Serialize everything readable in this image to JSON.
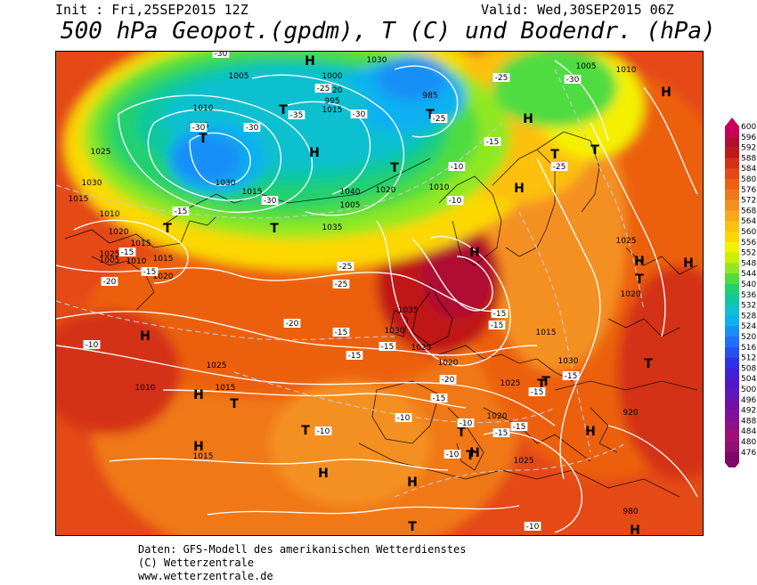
{
  "header": {
    "init": "Init : Fri,25SEP2015 12Z",
    "valid": "Valid: Wed,30SEP2015 06Z",
    "title": "500 hPa Geopot.(gpdm), T (C) und Bodendr. (hPa)"
  },
  "footer": {
    "line1": "Daten: GFS-Modell des amerikanischen Wetterdienstes",
    "line2": "(C) Wetterzentrale",
    "line3": "www.wetterzentrale.de"
  },
  "legend": {
    "values": [
      "600",
      "596",
      "592",
      "588",
      "584",
      "580",
      "576",
      "572",
      "568",
      "564",
      "560",
      "556",
      "552",
      "548",
      "544",
      "540",
      "536",
      "532",
      "528",
      "524",
      "520",
      "516",
      "512",
      "508",
      "504",
      "500",
      "496",
      "492",
      "488",
      "484",
      "480",
      "476"
    ],
    "colors": [
      "#c8005a",
      "#b01030",
      "#c01818",
      "#d43018",
      "#e44818",
      "#ec6010",
      "#f07818",
      "#f49020",
      "#f8a818",
      "#fcc010",
      "#fcd800",
      "#f4f000",
      "#c8f000",
      "#90e820",
      "#50dc40",
      "#20d070",
      "#10c8a0",
      "#10c0d0",
      "#10b0f0",
      "#1890f8",
      "#2070f8",
      "#2850f0",
      "#3030e8",
      "#4020d8",
      "#5018c8",
      "#6018b8",
      "#7010a8",
      "#801098",
      "#901088",
      "#a01078",
      "#901070",
      "#800868"
    ]
  },
  "map_labels": {
    "highs": [
      "H",
      "H",
      "H",
      "H",
      "H",
      "H",
      "H",
      "H",
      "H",
      "H",
      "H",
      "H",
      "H",
      "H",
      "H",
      "H",
      "H"
    ],
    "lows": [
      "T",
      "T",
      "T",
      "T",
      "T",
      "T",
      "T",
      "T",
      "T",
      "T",
      "T",
      "T",
      "T",
      "T",
      "T",
      "T",
      "T"
    ],
    "isobars": [
      "1005",
      "1000",
      "995",
      "1010",
      "1015",
      "1020",
      "1025",
      "1030",
      "1035",
      "1040",
      "985",
      "1015",
      "1010",
      "1005",
      "1020",
      "1025",
      "1030",
      "1015",
      "1010",
      "1020",
      "1025",
      "1015",
      "1010",
      "1020",
      "1015",
      "1010",
      "1025",
      "1020",
      "1035",
      "1030",
      "1025",
      "1020",
      "1025",
      "1015",
      "1010",
      "1015",
      "1030",
      "1025",
      "1020",
      "1025",
      "1015",
      "920",
      "980",
      "1030",
      "1005",
      "1005"
    ],
    "temps": [
      "-30",
      "-30",
      "-25",
      "-35",
      "-30",
      "-30",
      "-25",
      "-30",
      "-25",
      "-15",
      "-10",
      "-10",
      "-15",
      "-15",
      "-20",
      "-15",
      "-25",
      "-25",
      "-20",
      "-15",
      "-15",
      "-15",
      "-15",
      "-15",
      "-10",
      "-10",
      "-15",
      "-15",
      "-10",
      "-10",
      "-15",
      "-20",
      "-15",
      "-15",
      "-10",
      "-25",
      "-30",
      "-15",
      "-10"
    ]
  }
}
